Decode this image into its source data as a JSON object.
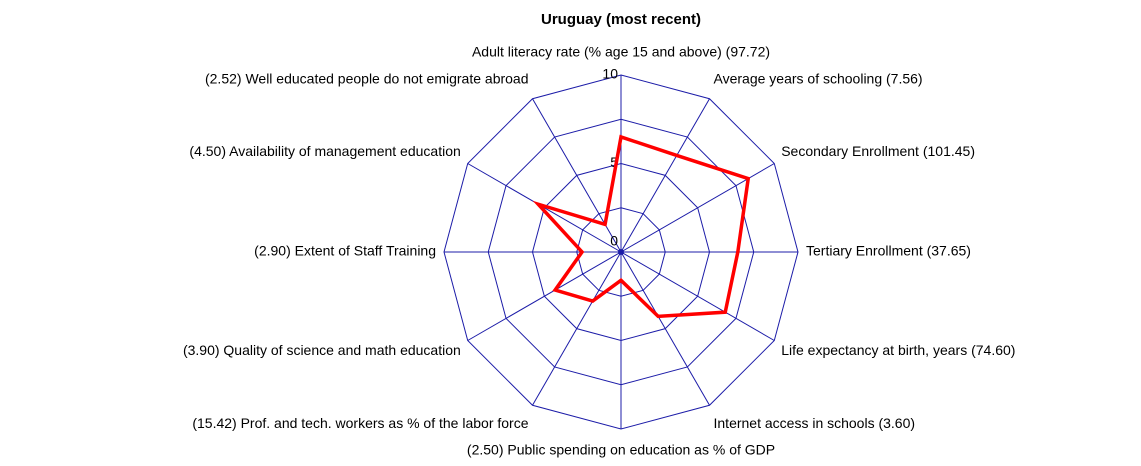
{
  "chart_data": {
    "type": "radar",
    "title": "Uruguay (most recent)",
    "categories": [
      "Adult literacy rate (% age 15 and above) (97.72)",
      "Average years of schooling (7.56)",
      "Secondary Enrollment (101.45)",
      "Tertiary  Enrollment (37.65)",
      "Life expectancy at birth, years (74.60)",
      "Internet access in schools (3.60)",
      "(2.50) Public spending on education as % of GDP",
      "(15.42) Prof. and tech. workers as % of the labor force",
      "(3.90) Quality of science and math education",
      "(2.90) Extent of Staff Training",
      "(4.50) Availability of management education",
      "(2.52) Well educated people do not emigrate abroad"
    ],
    "values": [
      6.5,
      6.3,
      8.3,
      6.6,
      6.8,
      4.2,
      1.6,
      3.2,
      4.3,
      2.2,
      5.4,
      1.8
    ],
    "color": "#ff0000",
    "grid_color": "#1c1ca8",
    "ylim": [
      0,
      10
    ],
    "yticks": [
      0,
      5,
      10
    ],
    "grid": true
  }
}
